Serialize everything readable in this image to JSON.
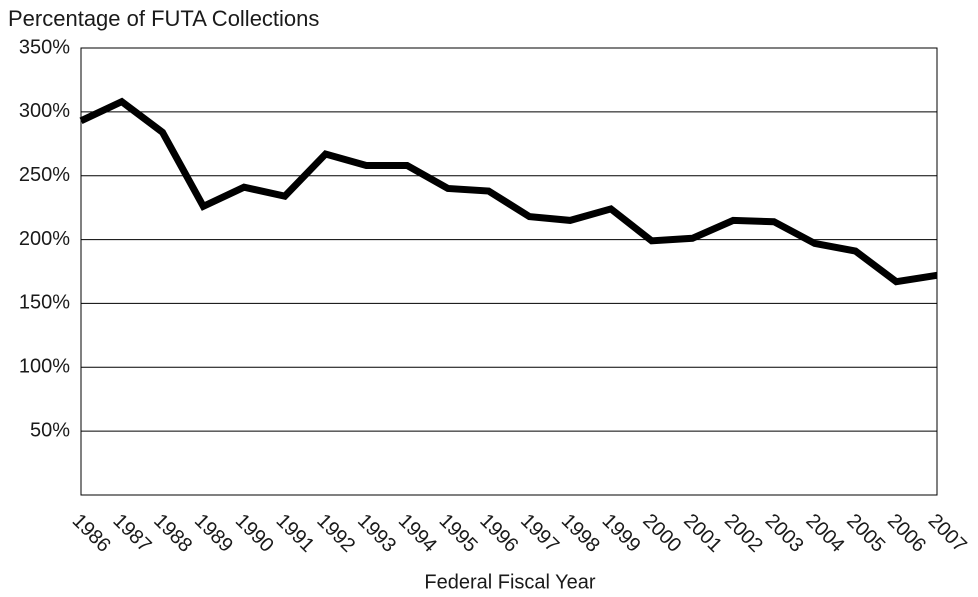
{
  "chart_data": {
    "type": "line",
    "title": "Percentage of FUTA Collections",
    "x_label": "Federal Fiscal Year",
    "categories": [
      "1986",
      "1987",
      "1988",
      "1989",
      "1990",
      "1991",
      "1992",
      "1993",
      "1994",
      "1995",
      "1996",
      "1997",
      "1998",
      "1999",
      "2000",
      "2001",
      "2002",
      "2003",
      "2004",
      "2005",
      "2006",
      "2007"
    ],
    "series": [
      {
        "color": "#000000",
        "values": [
          293,
          308,
          284,
          226,
          241,
          234,
          267,
          258,
          258,
          240,
          238,
          218,
          215,
          224,
          199,
          201,
          215,
          214,
          197,
          191,
          167,
          172
        ]
      }
    ],
    "ylim": [
      0,
      350
    ],
    "yticks": [
      {
        "value": 50,
        "label": "50%"
      },
      {
        "value": 100,
        "label": "100%"
      },
      {
        "value": 150,
        "label": "150%"
      },
      {
        "value": 200,
        "label": "200%"
      },
      {
        "value": 250,
        "label": "250%"
      },
      {
        "value": 300,
        "label": "300%"
      },
      {
        "value": 350,
        "label": "350%"
      }
    ],
    "grid": true
  }
}
